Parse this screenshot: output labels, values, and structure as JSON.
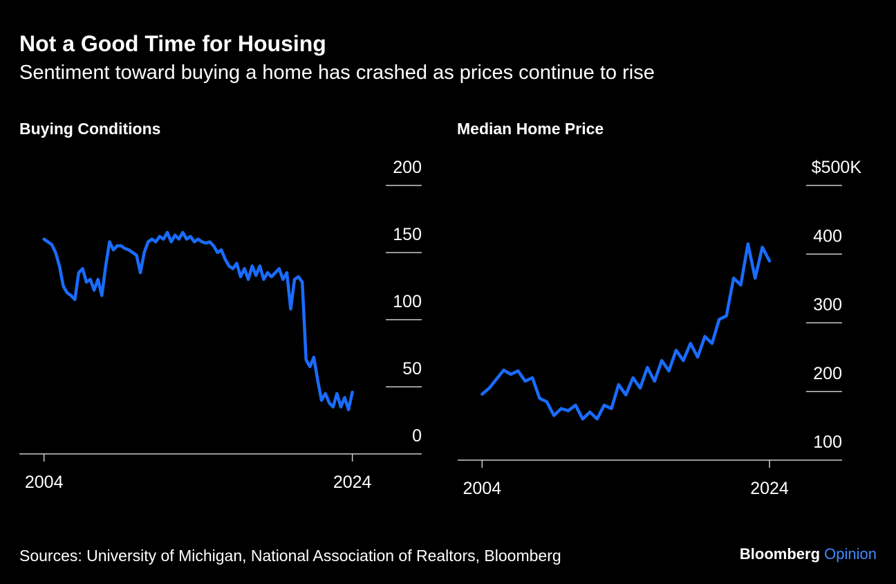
{
  "title": "Not a Good Time for Housing",
  "subtitle": "Sentiment toward buying a home has crashed as prices continue to rise",
  "source": "Sources: University of Michigan, National Association of Realtors, Bloomberg",
  "brand": [
    "Bloomberg",
    "Opinion"
  ],
  "chart_data": [
    {
      "type": "line",
      "title": "Buying Conditions",
      "color": "#1a6cff",
      "x": [
        2004,
        2004.25,
        2004.5,
        2004.75,
        2005,
        2005.25,
        2005.5,
        2005.75,
        2006,
        2006.25,
        2006.5,
        2006.75,
        2007,
        2007.25,
        2007.5,
        2007.75,
        2008,
        2008.25,
        2008.5,
        2008.75,
        2009,
        2009.25,
        2009.5,
        2009.75,
        2010,
        2010.25,
        2010.5,
        2010.75,
        2011,
        2011.25,
        2011.5,
        2011.75,
        2012,
        2012.25,
        2012.5,
        2012.75,
        2013,
        2013.25,
        2013.5,
        2013.75,
        2014,
        2014.25,
        2014.5,
        2014.75,
        2015,
        2015.25,
        2015.5,
        2015.75,
        2016,
        2016.25,
        2016.5,
        2016.75,
        2017,
        2017.25,
        2017.5,
        2017.75,
        2018,
        2018.25,
        2018.5,
        2018.75,
        2019,
        2019.25,
        2019.5,
        2019.75,
        2020,
        2020.25,
        2020.5,
        2020.75,
        2021,
        2021.25,
        2021.5,
        2021.75,
        2022,
        2022.25,
        2022.5,
        2022.75,
        2023,
        2023.25,
        2023.5,
        2023.75,
        2024
      ],
      "values": [
        160,
        158,
        156,
        150,
        140,
        125,
        120,
        118,
        115,
        135,
        138,
        128,
        130,
        122,
        130,
        118,
        140,
        158,
        152,
        155,
        155,
        153,
        152,
        150,
        148,
        135,
        150,
        158,
        160,
        158,
        162,
        160,
        165,
        158,
        163,
        160,
        165,
        160,
        162,
        158,
        160,
        158,
        157,
        158,
        155,
        150,
        152,
        145,
        140,
        138,
        142,
        132,
        138,
        130,
        140,
        133,
        140,
        130,
        135,
        132,
        135,
        138,
        130,
        135,
        108,
        130,
        132,
        128,
        70,
        65,
        72,
        55,
        40,
        45,
        38,
        35,
        45,
        35,
        42,
        33,
        46
      ],
      "xlim": [
        2002.4,
        2028.5
      ],
      "xticks": [
        2004,
        2024
      ],
      "ylim": [
        0,
        200
      ],
      "yticks": [
        0,
        50,
        100,
        150,
        200
      ]
    },
    {
      "type": "line",
      "title": "Median Home Price",
      "color": "#1a6cff",
      "x": [
        2004,
        2004.5,
        2005,
        2005.5,
        2006,
        2006.5,
        2007,
        2007.5,
        2008,
        2008.5,
        2009,
        2009.5,
        2010,
        2010.5,
        2011,
        2011.5,
        2012,
        2012.5,
        2013,
        2013.5,
        2014,
        2014.5,
        2015,
        2015.5,
        2016,
        2016.5,
        2017,
        2017.5,
        2018,
        2018.5,
        2019,
        2019.5,
        2020,
        2020.5,
        2021,
        2021.5,
        2022,
        2022.5,
        2023,
        2023.5,
        2024
      ],
      "values": [
        196,
        205,
        218,
        231,
        225,
        230,
        215,
        220,
        190,
        185,
        165,
        175,
        172,
        180,
        160,
        170,
        160,
        180,
        175,
        210,
        195,
        220,
        205,
        235,
        215,
        245,
        230,
        260,
        245,
        270,
        250,
        280,
        270,
        305,
        310,
        365,
        355,
        415,
        365,
        410,
        390
      ],
      "xlim": [
        2002.3,
        2029.05
      ],
      "xticks": [
        2004,
        2024
      ],
      "ylim": [
        100,
        500
      ],
      "yticks": [
        100,
        200,
        300,
        400,
        {
          "value": 500,
          "label": "$500K"
        }
      ]
    }
  ]
}
